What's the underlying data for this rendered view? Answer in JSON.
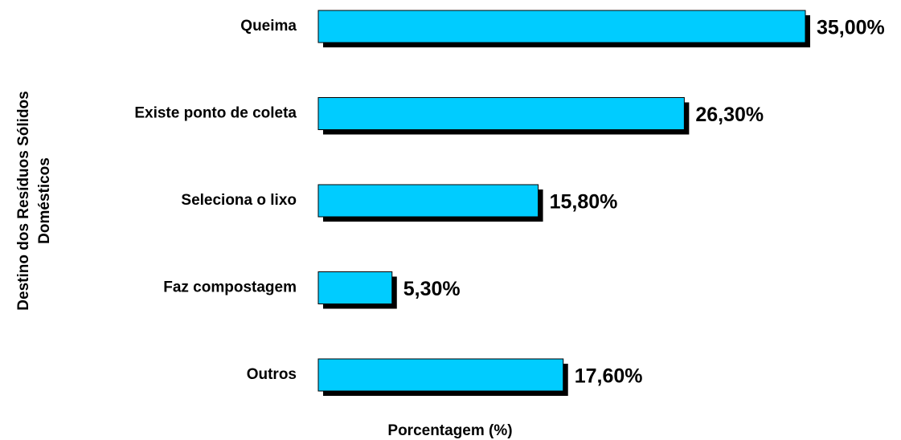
{
  "chart_data": {
    "type": "hbar",
    "categories": [
      "Queima",
      "Existe ponto de coleta",
      "Seleciona o lixo",
      "Faz compostagem",
      "Outros"
    ],
    "values": [
      35,
      26.3,
      15.8,
      5.3,
      17.6
    ],
    "value_labels": [
      "35,00%",
      "26,30%",
      "15,80%",
      "5,30%",
      "17,60%"
    ],
    "color": "#00ccff",
    "xlabel": "Porcentagem (%)",
    "ylabel": [
      "Destino dos Resíduos Sólidos",
      "Domésticos"
    ]
  }
}
